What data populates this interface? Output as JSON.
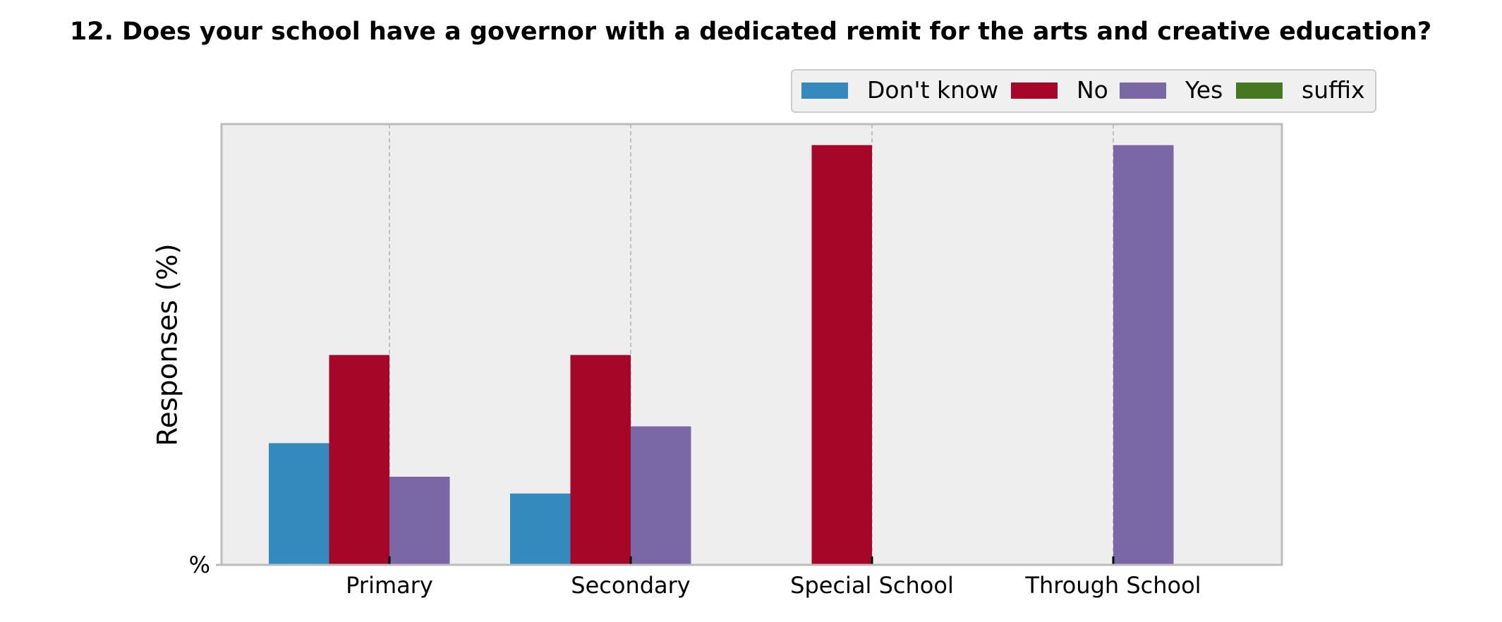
{
  "chart_data": {
    "type": "bar",
    "title": "12. Does your school have a governor with a dedicated remit for the arts and creative education?",
    "xlabel": "",
    "ylabel": "Responses (%)",
    "ytick_label": "%",
    "ylim": [
      0,
      105
    ],
    "categories": [
      "Primary",
      "Secondary",
      "Special School",
      "Through School"
    ],
    "series": [
      {
        "name": "Don't know",
        "color": "#348ABD",
        "values": [
          29,
          17,
          0,
          0
        ]
      },
      {
        "name": "No",
        "color": "#A60628",
        "values": [
          50,
          50,
          100,
          0
        ]
      },
      {
        "name": "Yes",
        "color": "#7A68A6",
        "values": [
          21,
          33,
          0,
          100
        ]
      },
      {
        "name": "suffix",
        "color": "#467821",
        "values": [
          0,
          0,
          0,
          0
        ]
      }
    ],
    "grid": "vertical dashed",
    "legend_position": "top-right",
    "background": "#EEEEEE"
  }
}
